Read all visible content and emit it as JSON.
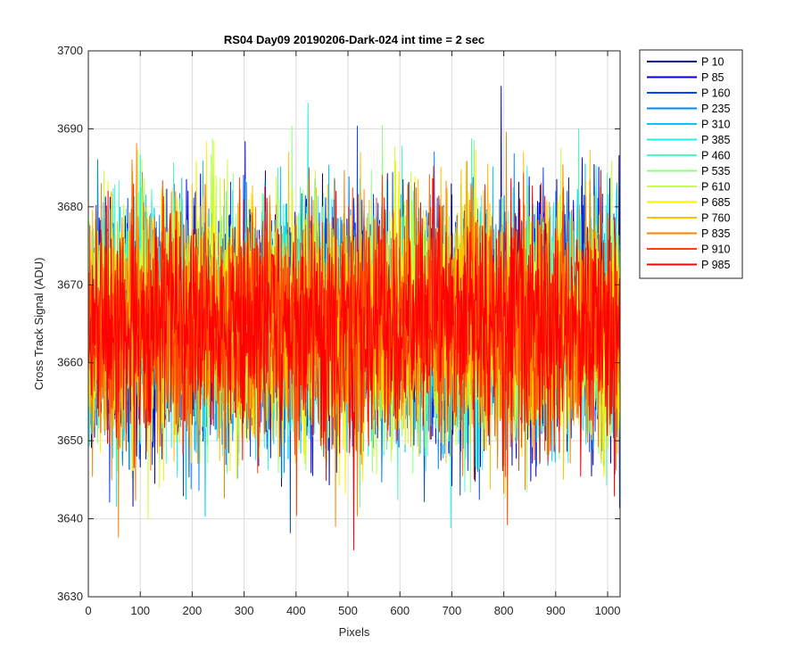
{
  "chart_data": {
    "type": "line",
    "title": "RS04 Day09 20190206-Dark-024 int time = 2 sec",
    "xlabel": "Pixels",
    "ylabel": "Cross Track Signal (ADU)",
    "xlim": [
      0,
      1024
    ],
    "ylim": [
      3630,
      3700
    ],
    "xticks": [
      0,
      100,
      200,
      300,
      400,
      500,
      600,
      700,
      800,
      900,
      1000
    ],
    "yticks": [
      3630,
      3640,
      3650,
      3660,
      3670,
      3680,
      3690,
      3700
    ],
    "grid": true,
    "legend_position": "outside-top-right",
    "series_points": 1024,
    "series_mean": 3665,
    "series": [
      {
        "name": "P 10",
        "color": "#00008F"
      },
      {
        "name": "P 85",
        "color": "#0000D8"
      },
      {
        "name": "P 160",
        "color": "#0044FF"
      },
      {
        "name": "P 235",
        "color": "#0088FF"
      },
      {
        "name": "P 310",
        "color": "#00C8FF"
      },
      {
        "name": "P 385",
        "color": "#1EF0F0"
      },
      {
        "name": "P 460",
        "color": "#50F8C0"
      },
      {
        "name": "P 535",
        "color": "#90FF80"
      },
      {
        "name": "P 610",
        "color": "#C8FF40"
      },
      {
        "name": "P 685",
        "color": "#FFF000"
      },
      {
        "name": "P 760",
        "color": "#FFC000"
      },
      {
        "name": "P 835",
        "color": "#FF8000"
      },
      {
        "name": "P 910",
        "color": "#FF4000"
      },
      {
        "name": "P 985",
        "color": "#FF0000"
      }
    ]
  }
}
